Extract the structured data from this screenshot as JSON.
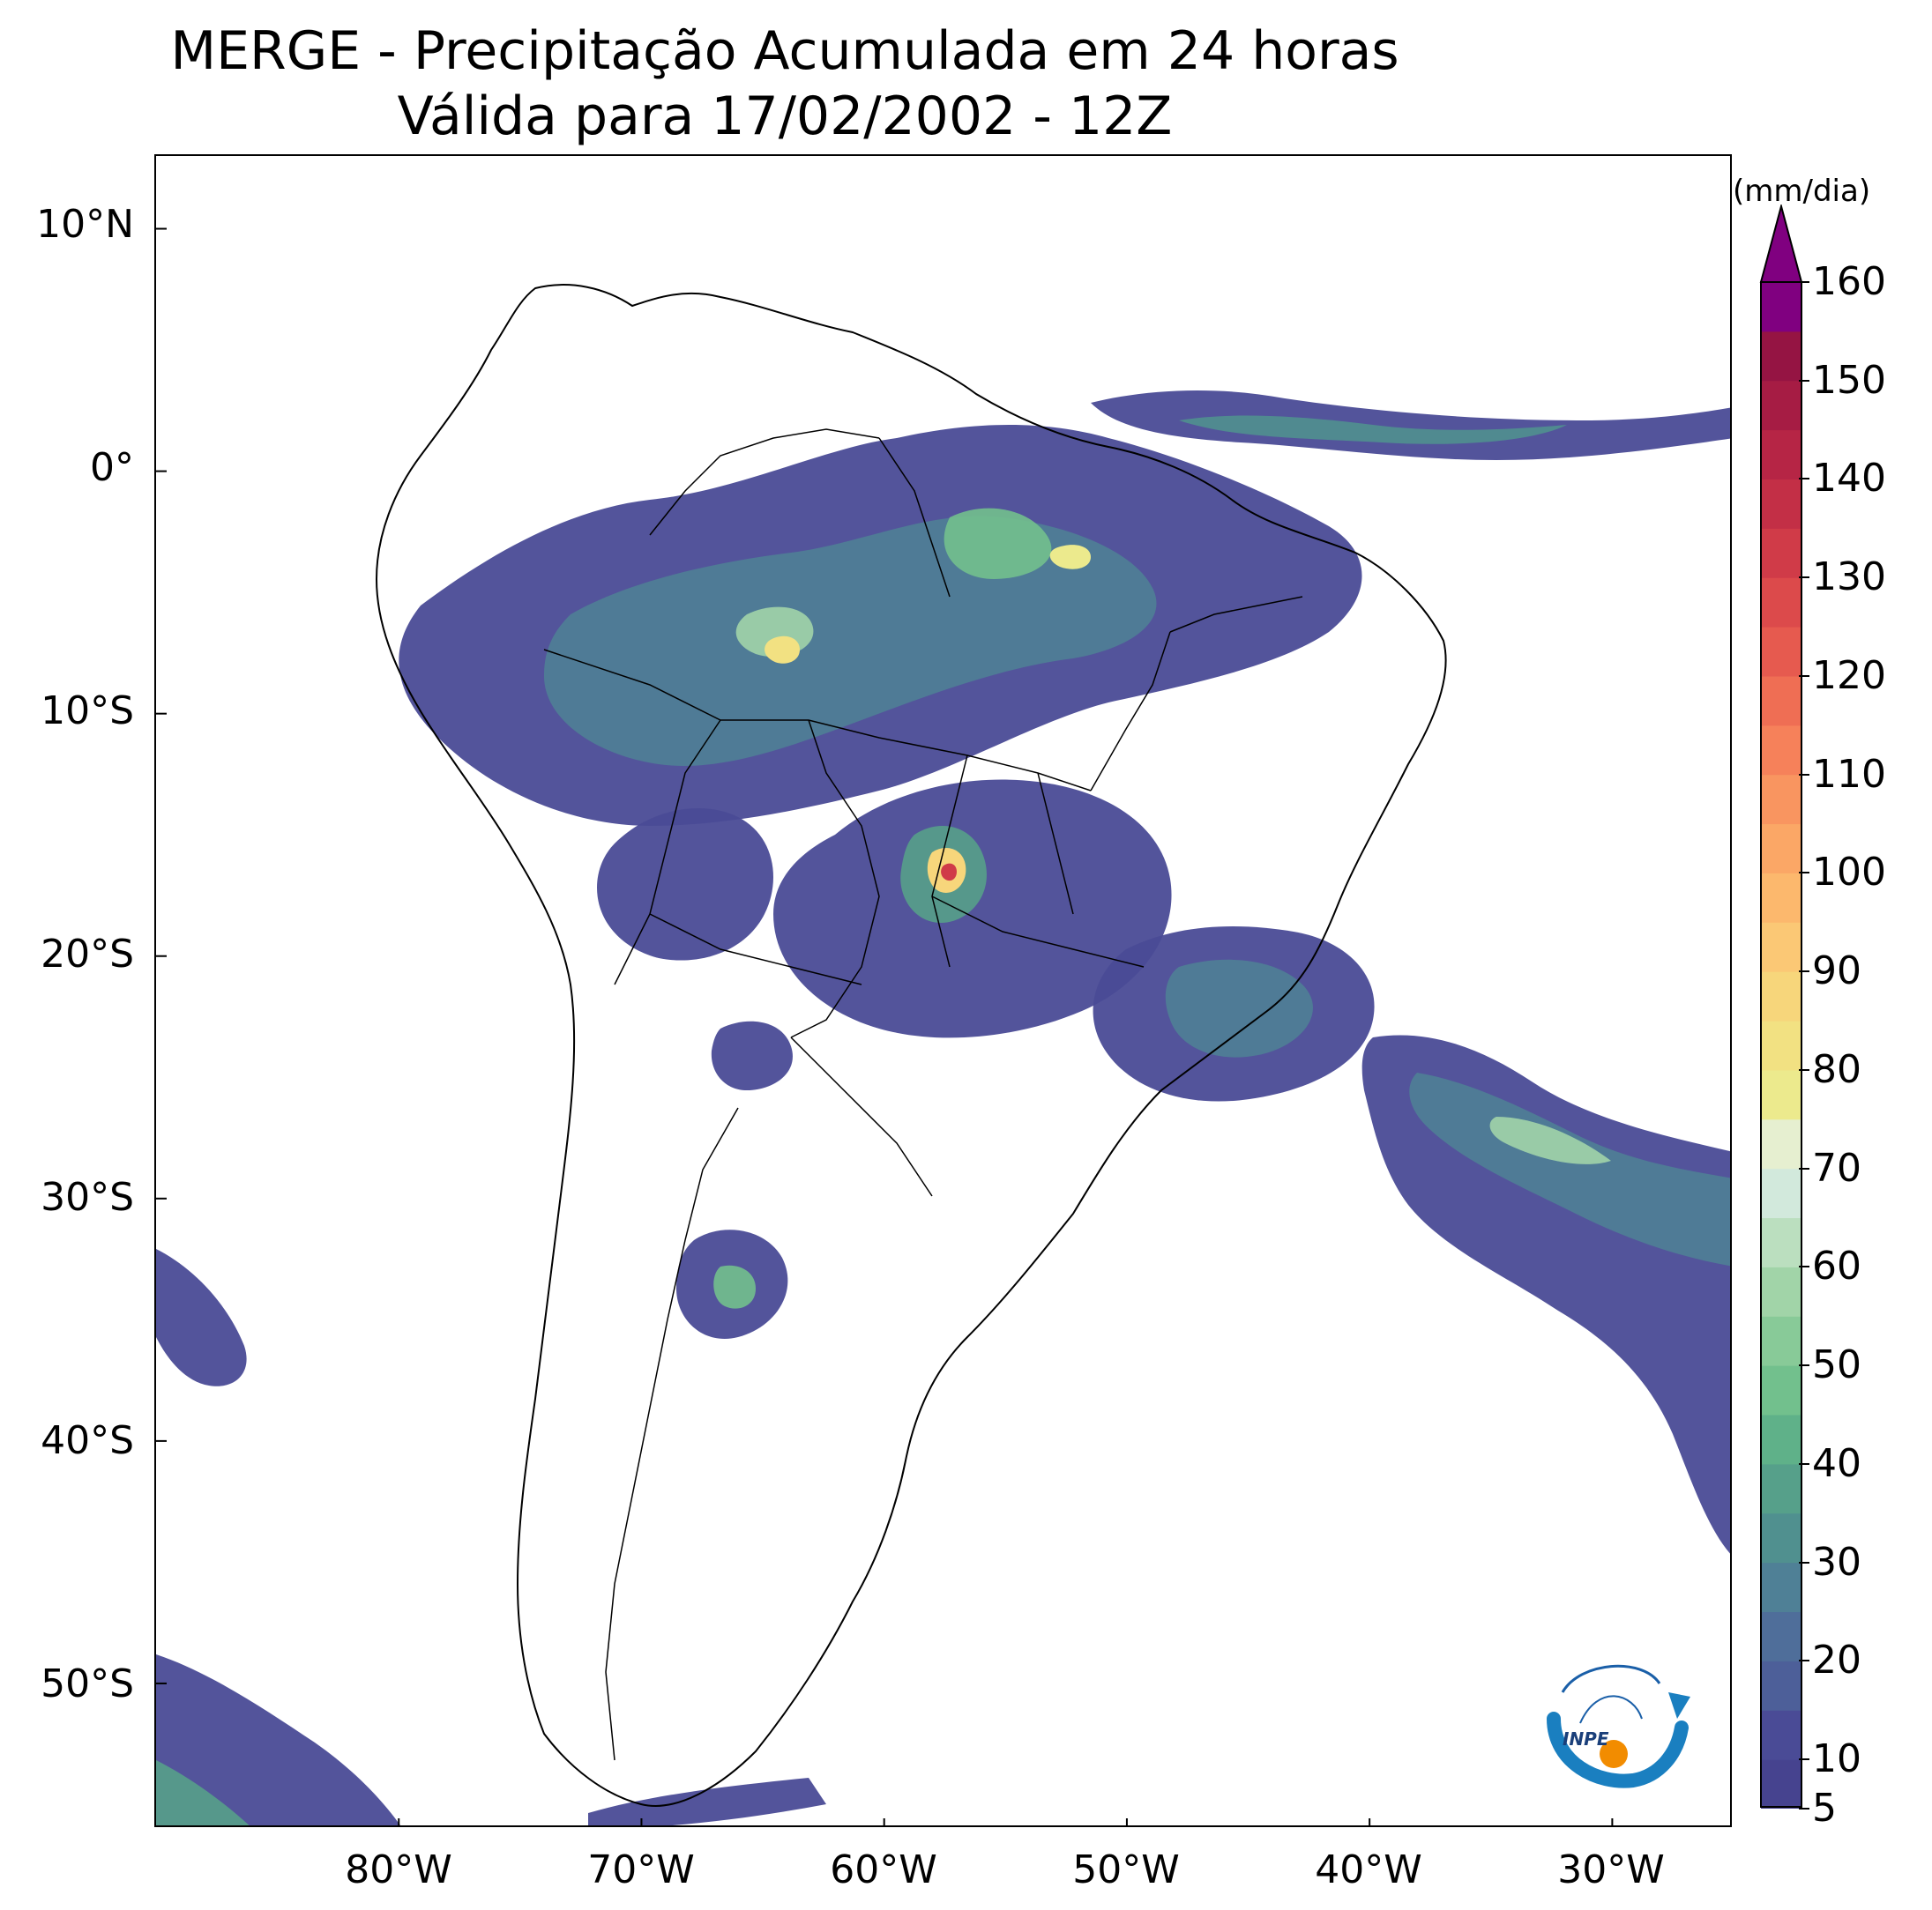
{
  "title": {
    "line1": "MERGE - Precipitação Acumulada em 24 horas",
    "line2": "Válida para 17/02/2002 - 12Z"
  },
  "map": {
    "lat_labels": [
      "10°N",
      "0°",
      "10°S",
      "20°S",
      "30°S",
      "40°S",
      "50°S"
    ],
    "lon_labels": [
      "80°W",
      "70°W",
      "60°W",
      "50°W",
      "40°W",
      "30°W"
    ],
    "lon_range": [
      -90,
      -25
    ],
    "lat_range": [
      -56,
      13
    ]
  },
  "colorbar": {
    "unit": "(mm/dia)",
    "ticks": [
      "160",
      "150",
      "140",
      "130",
      "120",
      "110",
      "100",
      "90",
      "80",
      "70",
      "60",
      "50",
      "40",
      "30",
      "20",
      "10",
      "5"
    ],
    "levels": [
      5,
      10,
      15,
      20,
      25,
      30,
      35,
      40,
      45,
      50,
      55,
      60,
      65,
      70,
      75,
      80,
      85,
      90,
      95,
      100,
      105,
      110,
      115,
      120,
      125,
      130,
      135,
      140,
      145,
      150,
      155,
      160
    ],
    "colors": [
      "#46438f",
      "#4a4b96",
      "#4d5f99",
      "#4f6e9a",
      "#4f8096",
      "#50908f",
      "#56a08a",
      "#5fb189",
      "#72c08d",
      "#88ca98",
      "#a1d4a8",
      "#bbdfbf",
      "#d2e9dc",
      "#e6efd0",
      "#ecea8d",
      "#f2e182",
      "#f7d67b",
      "#fbc875",
      "#fcb86d",
      "#fba766",
      "#f99560",
      "#f6815a",
      "#ef6e54",
      "#e65a4f",
      "#dc4a4b",
      "#d03b48",
      "#c32f46",
      "#b62545",
      "#a61c44",
      "#951443",
      "#800080"
    ],
    "over_color": "#800080"
  },
  "logo": {
    "text": "INPE"
  }
}
